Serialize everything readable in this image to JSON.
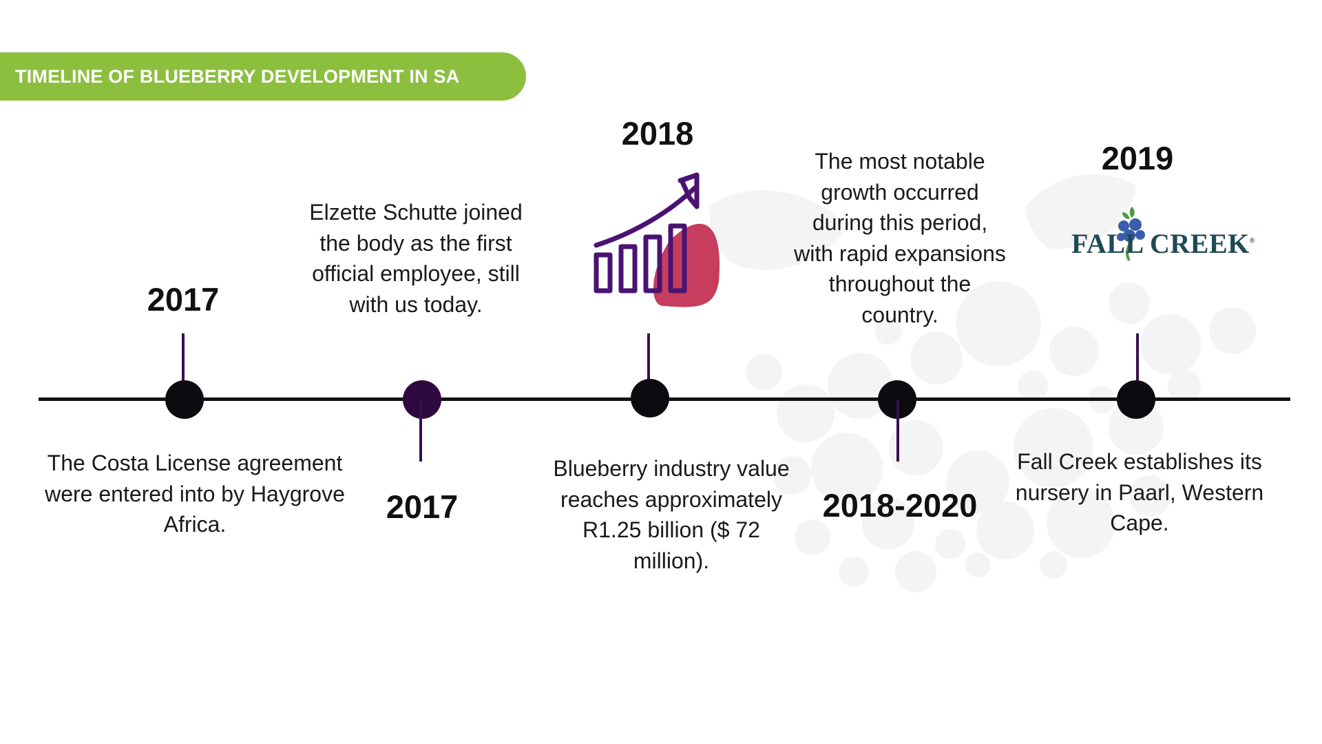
{
  "header": {
    "title": "TIMELINE OF BLUEBERRY DEVELOPMENT IN SA"
  },
  "colors": {
    "banner_green": "#8dbf3f",
    "axis": "#111111",
    "dot_dark": "#0d0b10",
    "dot_purple": "#2e0a3e",
    "stem_purple": "#3b0e4f",
    "icon_purple": "#4a1373",
    "icon_red": "#c73d5e",
    "logo_teal": "#1e4a56",
    "logo_berry": "#3a5cab",
    "logo_leaf": "#4a9a3d",
    "deco_gray": "#f4f4f4"
  },
  "events": [
    {
      "year": "2017",
      "text": "The Costa License agreement were entered into by Haygrove Africa."
    },
    {
      "year": "2017",
      "text": "Elzette Schutte joined the body as the first official employee, still with us today."
    },
    {
      "year": "2018",
      "text": "Blueberry industry value reaches approximately R1.25 billion ($ 72 million).",
      "icon": "growth-chart-icon"
    },
    {
      "year": "2018-2020",
      "text": "The most notable growth occurred during this period, with rapid expansions throughout the country."
    },
    {
      "year": "2019",
      "text": "Fall Creek establishes its nursery in Paarl, Western Cape.",
      "logo": "FALL CREEK"
    }
  ]
}
